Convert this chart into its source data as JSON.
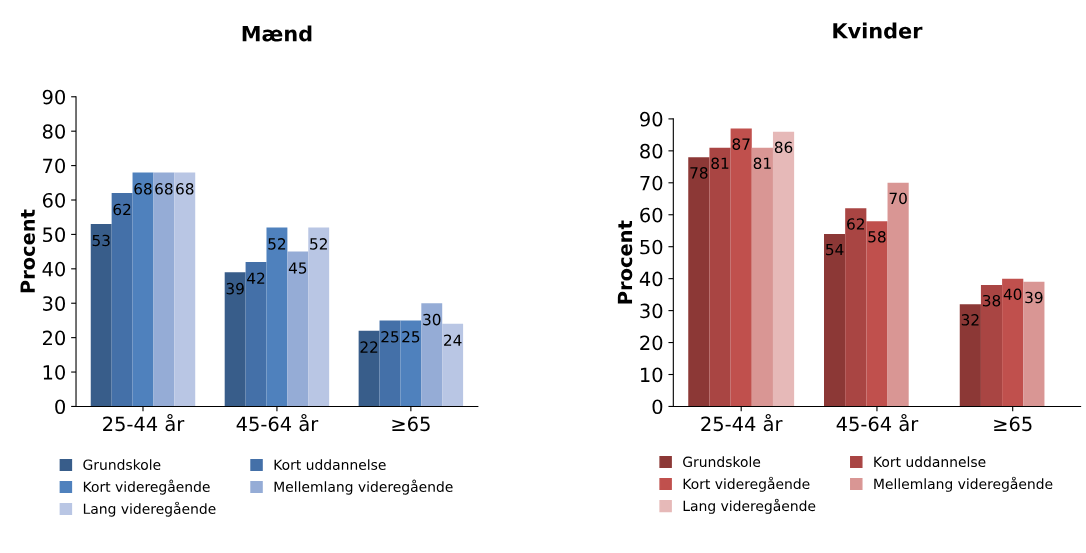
{
  "chart_data": [
    {
      "type": "bar",
      "title": "Mænd",
      "ylabel": "Procent",
      "categories": [
        "25-44 år",
        "45-64 år",
        "≥65"
      ],
      "ylim": [
        0,
        90
      ],
      "yticks": [
        0,
        10,
        20,
        30,
        40,
        50,
        60,
        70,
        80,
        90
      ],
      "grid": false,
      "legend": "bottom",
      "data_labels": true,
      "series": [
        {
          "name": "Grundskole",
          "color": "#385d8a",
          "values": [
            53,
            39,
            22
          ]
        },
        {
          "name": "Kort uddannelse",
          "color": "#4470a8",
          "values": [
            62,
            42,
            25
          ]
        },
        {
          "name": "Kort videregående",
          "color": "#4f81bd",
          "values": [
            68,
            52,
            25
          ]
        },
        {
          "name": "Mellemlang videregående",
          "color": "#95acd6",
          "values": [
            68,
            45,
            30
          ]
        },
        {
          "name": "Lang videregående",
          "color": "#b9c6e4",
          "values": [
            68,
            52,
            24
          ]
        }
      ]
    },
    {
      "type": "bar",
      "title": "Kvinder",
      "ylabel": "Procent",
      "categories": [
        "25-44 år",
        "45-64 år",
        "≥65"
      ],
      "ylim": [
        0,
        90
      ],
      "yticks": [
        0,
        10,
        20,
        30,
        40,
        50,
        60,
        70,
        80,
        90
      ],
      "grid": false,
      "legend": "bottom",
      "data_labels": true,
      "series": [
        {
          "name": "Grundskole",
          "color": "#8c3836",
          "values": [
            78,
            54,
            32
          ]
        },
        {
          "name": "Kort uddannelse",
          "color": "#a94543",
          "values": [
            81,
            62,
            38
          ]
        },
        {
          "name": "Kort videregående",
          "color": "#c0504d",
          "values": [
            87,
            58,
            40
          ]
        },
        {
          "name": "Mellemlang videregående",
          "color": "#d99694",
          "values": [
            81,
            70,
            39
          ]
        },
        {
          "name": "Lang videregående",
          "color": "#e6b9b8",
          "values": [
            86,
            null,
            null
          ]
        }
      ]
    }
  ]
}
